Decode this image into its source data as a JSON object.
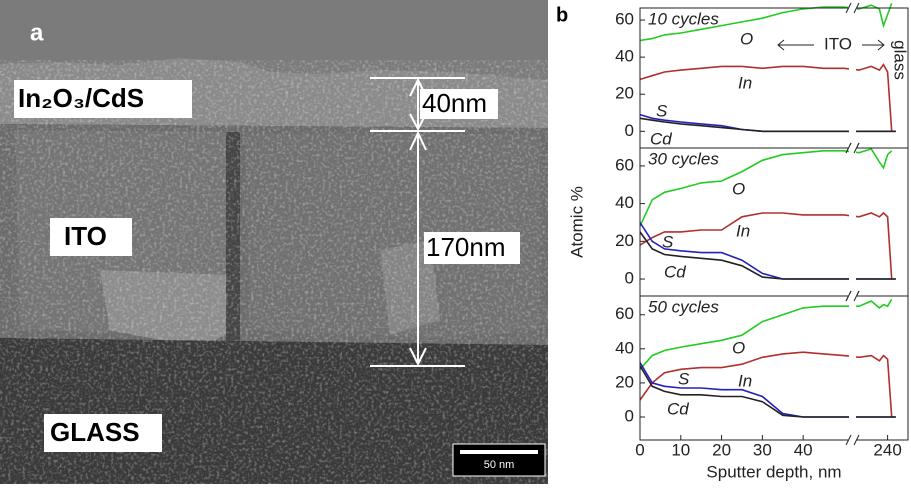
{
  "panel_a": {
    "label": "a",
    "layers": [
      "In₂O₃/CdS",
      "ITO",
      "GLASS"
    ],
    "dimensions": [
      "40nm",
      "170nm"
    ],
    "scale_bar": "50 nm"
  },
  "panel_b_label": "b",
  "chart_data": [
    {
      "type": "line",
      "title": "10 cycles",
      "annotations": [
        "ITO",
        "glass"
      ],
      "x": [
        0,
        3,
        6,
        10,
        15,
        20,
        25,
        30,
        35,
        40,
        45,
        50,
        233,
        236,
        238,
        239,
        240,
        241,
        242
      ],
      "xlim": [
        0,
        245
      ],
      "xbreak": [
        51,
        232.5
      ],
      "ylim": [
        -9,
        66.5
      ],
      "yticks": [
        0,
        20,
        40,
        60
      ],
      "series": [
        {
          "name": "O",
          "color": "#22cc22",
          "values": [
            49,
            50,
            52,
            53,
            55,
            57,
            59,
            61,
            64,
            66,
            67,
            67,
            66,
            68,
            66,
            57,
            63,
            69,
            null
          ]
        },
        {
          "name": "In",
          "color": "#b03030",
          "values": [
            28,
            30,
            32,
            33,
            34,
            35,
            35,
            34,
            35,
            35,
            34,
            34,
            33,
            35,
            33,
            36,
            32,
            0,
            null
          ]
        },
        {
          "name": "S",
          "color": "#2222bb",
          "values": [
            9,
            7,
            6,
            5,
            4,
            3,
            1,
            0,
            0,
            0,
            0,
            0,
            0,
            0,
            0,
            0,
            0,
            0,
            0
          ]
        },
        {
          "name": "Cd",
          "color": "#222222",
          "values": [
            7,
            6,
            5,
            4,
            3,
            2,
            1,
            0,
            0,
            0,
            0,
            0,
            0,
            0,
            0,
            0,
            0,
            0,
            0
          ]
        }
      ]
    },
    {
      "type": "line",
      "title": "30 cycles",
      "ylabel": "Atomic %",
      "x": [
        0,
        3,
        6,
        10,
        15,
        20,
        25,
        30,
        35,
        40,
        45,
        50,
        233,
        236,
        238,
        239,
        240,
        241,
        242
      ],
      "xlim": [
        0,
        245
      ],
      "xbreak": [
        51,
        232.5
      ],
      "ylim": [
        -9,
        69.5
      ],
      "yticks": [
        0,
        20,
        40,
        60
      ],
      "series": [
        {
          "name": "O",
          "color": "#22cc22",
          "values": [
            28,
            42,
            46,
            48,
            51,
            52,
            57,
            63,
            66,
            67,
            68,
            68,
            67,
            69,
            62,
            59,
            66,
            68,
            null
          ]
        },
        {
          "name": "In",
          "color": "#b03030",
          "values": [
            18,
            22,
            25,
            25,
            26,
            26,
            33,
            35,
            35,
            34,
            34,
            34,
            33,
            35,
            33,
            35,
            33,
            0,
            null
          ]
        },
        {
          "name": "S",
          "color": "#2222bb",
          "values": [
            30,
            20,
            16,
            15,
            14,
            14,
            10,
            3,
            0,
            0,
            0,
            0,
            0,
            0,
            0,
            0,
            0,
            0,
            0
          ]
        },
        {
          "name": "Cd",
          "color": "#222222",
          "values": [
            25,
            16,
            13,
            12,
            11,
            10,
            7,
            1,
            0,
            0,
            0,
            0,
            0,
            0,
            0,
            0,
            0,
            0,
            0
          ]
        }
      ]
    },
    {
      "type": "line",
      "title": "50 cycles",
      "xlabel": "Sputter depth, nm",
      "x": [
        0,
        3,
        6,
        10,
        15,
        20,
        25,
        30,
        35,
        40,
        45,
        50,
        233,
        236,
        238,
        239,
        240,
        241,
        242
      ],
      "xlim": [
        0,
        245
      ],
      "xbreak": [
        51,
        232.5
      ],
      "ylim": [
        -13.5,
        71
      ],
      "yticks": [
        0,
        20,
        40,
        60
      ],
      "xticks": [
        0,
        10,
        20,
        30,
        40,
        240
      ],
      "series": [
        {
          "name": "O",
          "color": "#22cc22",
          "values": [
            28,
            36,
            39,
            41,
            43,
            45,
            48,
            56,
            60,
            64,
            65,
            65,
            65,
            68,
            64,
            66,
            65,
            69,
            null
          ]
        },
        {
          "name": "In",
          "color": "#b03030",
          "values": [
            10,
            20,
            26,
            28,
            29,
            29,
            31,
            35,
            37,
            38,
            37,
            36,
            35,
            36,
            33,
            36,
            34,
            0,
            null
          ]
        },
        {
          "name": "S",
          "color": "#2222bb",
          "values": [
            32,
            20,
            18,
            17,
            17,
            16,
            16,
            12,
            2,
            0,
            0,
            0,
            0,
            0,
            0,
            0,
            0,
            0,
            0
          ]
        },
        {
          "name": "Cd",
          "color": "#222222",
          "values": [
            30,
            18,
            15,
            13,
            13,
            12,
            12,
            9,
            1,
            0,
            0,
            0,
            0,
            0,
            0,
            0,
            0,
            0,
            0
          ]
        }
      ]
    }
  ]
}
